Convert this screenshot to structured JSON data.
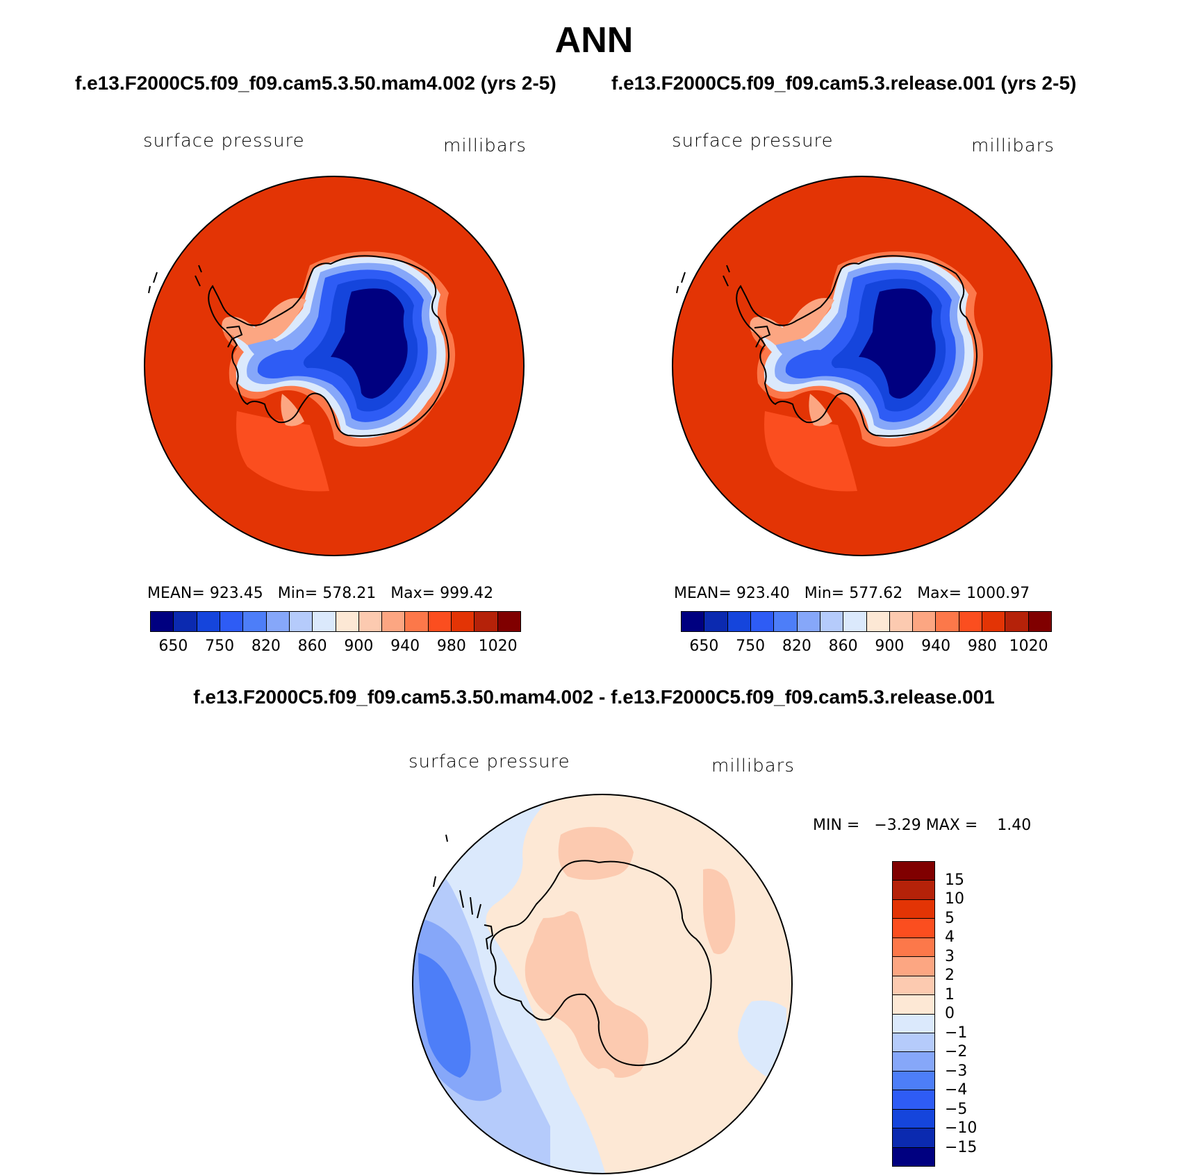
{
  "title": "ANN",
  "panel_left": {
    "case": "f.e13.F2000C5.f09_f09.cam5.3.50.mam4.002 (yrs 2-5)",
    "variable": "surface pressure",
    "units": "millibars",
    "stats": "MEAN= 923.45   Min= 578.21   Max= 999.42"
  },
  "panel_right": {
    "case": "f.e13.F2000C5.f09_f09.cam5.3.release.001 (yrs 2-5)",
    "variable": "surface pressure",
    "units": "millibars",
    "stats": "MEAN= 923.40   Min= 577.62   Max= 1000.97"
  },
  "panel_diff": {
    "case": "f.e13.F2000C5.f09_f09.cam5.3.50.mam4.002 - f.e13.F2000C5.f09_f09.cam5.3.release.001",
    "variable": "surface pressure",
    "units": "millibars",
    "stats": "MIN =   −3.29 MAX =    1.40"
  },
  "colorbar_main": {
    "labels": [
      "650",
      "750",
      "820",
      "860",
      "900",
      "940",
      "980",
      "1020"
    ],
    "colors": [
      "#000080",
      "#0b2ab0",
      "#1545dc",
      "#2e5cf5",
      "#4d7ef8",
      "#86a7f9",
      "#b5cbfb",
      "#dbe9fc",
      "#fde8d5",
      "#fccab0",
      "#fca682",
      "#fc784a",
      "#fb4e1f",
      "#e33405",
      "#b52209",
      "#800000"
    ]
  },
  "colorbar_diff": {
    "labels": [
      "15",
      "10",
      "5",
      "4",
      "3",
      "2",
      "1",
      "0",
      "−1",
      "−2",
      "−3",
      "−4",
      "−5",
      "−10",
      "−15"
    ],
    "colors": [
      "#800000",
      "#b52209",
      "#e33405",
      "#fb4e1f",
      "#fc784a",
      "#fca682",
      "#fccab0",
      "#fde8d5",
      "#dbe9fc",
      "#b5cbfb",
      "#86a7f9",
      "#4d7ef8",
      "#2e5cf5",
      "#1545dc",
      "#0b2ab0",
      "#000080"
    ]
  }
}
